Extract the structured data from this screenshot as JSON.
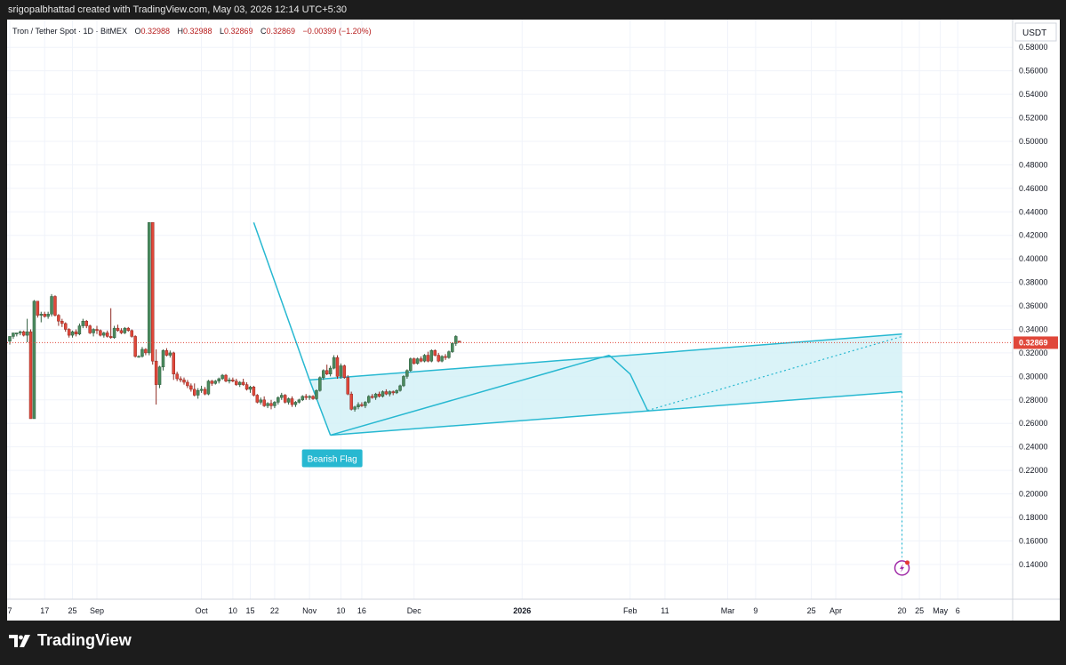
{
  "header": {
    "credit": "srigopalbhattad created with TradingView.com, May 03, 2026 12:14 UTC+5:30"
  },
  "legend": {
    "symbol": "Tron / Tether Spot · 1D · BitMEX",
    "open_label": "O",
    "open": "0.32988",
    "high_label": "H",
    "high": "0.32988",
    "low_label": "L",
    "low": "0.32869",
    "close_label": "C",
    "close": "0.32869",
    "change": "−0.00399 (−1.20%)"
  },
  "currency_label": "USDT",
  "last_price_label": "0.32869",
  "pattern_label": "Bearish Flag",
  "footer": {
    "brand": "TradingView",
    "logo_icon": "tradingview-logo-icon"
  },
  "colors": {
    "up": "#4a8a5e",
    "down": "#e0473a",
    "pattern": "#27b8d1",
    "pattern_fill": "#d4f1f7",
    "last_price": "#e0473a"
  },
  "chart_data": {
    "type": "candlestick",
    "symbol": "TRXUSDT",
    "interval": "1D",
    "ylim": [
      0.13,
      0.6
    ],
    "y_ticks": [
      "0.58000",
      "0.56000",
      "0.54000",
      "0.52000",
      "0.50000",
      "0.48000",
      "0.46000",
      "0.44000",
      "0.42000",
      "0.40000",
      "0.38000",
      "0.36000",
      "0.34000",
      "0.32000",
      "0.30000",
      "0.28000",
      "0.26000",
      "0.24000",
      "0.22000",
      "0.20000",
      "0.18000",
      "0.16000",
      "0.14000"
    ],
    "x_ticks": [
      {
        "label": "7",
        "day": 0
      },
      {
        "label": "17",
        "day": 10
      },
      {
        "label": "25",
        "day": 18
      },
      {
        "label": "Sep",
        "day": 25
      },
      {
        "label": "Oct",
        "day": 55
      },
      {
        "label": "10",
        "day": 64
      },
      {
        "label": "15",
        "day": 69
      },
      {
        "label": "22",
        "day": 76
      },
      {
        "label": "Nov",
        "day": 86
      },
      {
        "label": "10",
        "day": 95
      },
      {
        "label": "16",
        "day": 101
      },
      {
        "label": "Dec",
        "day": 116
      },
      {
        "label": "2026",
        "day": 147
      },
      {
        "label": "Feb",
        "day": 178
      },
      {
        "label": "11",
        "day": 188
      },
      {
        "label": "Mar",
        "day": 206
      },
      {
        "label": "9",
        "day": 214
      },
      {
        "label": "25",
        "day": 230
      },
      {
        "label": "Apr",
        "day": 237
      },
      {
        "label": "20",
        "day": 256
      },
      {
        "label": "25",
        "day": 261
      },
      {
        "label": "May",
        "day": 267
      },
      {
        "label": "6",
        "day": 272
      }
    ],
    "candles": [
      [
        0.33,
        0.334,
        0.327,
        0.334
      ],
      [
        0.334,
        0.336,
        0.332,
        0.337
      ],
      [
        0.336,
        0.337,
        0.334,
        0.337
      ],
      [
        0.337,
        0.339,
        0.335,
        0.338
      ],
      [
        0.338,
        0.339,
        0.334,
        0.335
      ],
      [
        0.335,
        0.349,
        0.329,
        0.338
      ],
      [
        0.338,
        0.34,
        0.264,
        0.264
      ],
      [
        0.264,
        0.365,
        0.264,
        0.364
      ],
      [
        0.364,
        0.364,
        0.35,
        0.352
      ],
      [
        0.352,
        0.355,
        0.346,
        0.353
      ],
      [
        0.353,
        0.355,
        0.35,
        0.351
      ],
      [
        0.351,
        0.355,
        0.349,
        0.353
      ],
      [
        0.353,
        0.37,
        0.351,
        0.368
      ],
      [
        0.368,
        0.369,
        0.351,
        0.352
      ],
      [
        0.352,
        0.353,
        0.343,
        0.347
      ],
      [
        0.347,
        0.349,
        0.342,
        0.345
      ],
      [
        0.345,
        0.346,
        0.338,
        0.34
      ],
      [
        0.34,
        0.341,
        0.333,
        0.335
      ],
      [
        0.335,
        0.339,
        0.333,
        0.338
      ],
      [
        0.338,
        0.34,
        0.334,
        0.336
      ],
      [
        0.336,
        0.345,
        0.335,
        0.343
      ],
      [
        0.343,
        0.349,
        0.341,
        0.347
      ],
      [
        0.347,
        0.348,
        0.341,
        0.343
      ],
      [
        0.343,
        0.344,
        0.336,
        0.337
      ],
      [
        0.337,
        0.341,
        0.334,
        0.34
      ],
      [
        0.34,
        0.343,
        0.336,
        0.339
      ],
      [
        0.339,
        0.34,
        0.334,
        0.335
      ],
      [
        0.335,
        0.338,
        0.333,
        0.337
      ],
      [
        0.337,
        0.339,
        0.333,
        0.334
      ],
      [
        0.334,
        0.358,
        0.332,
        0.333
      ],
      [
        0.333,
        0.343,
        0.332,
        0.341
      ],
      [
        0.341,
        0.344,
        0.338,
        0.339
      ],
      [
        0.339,
        0.341,
        0.336,
        0.337
      ],
      [
        0.337,
        0.342,
        0.336,
        0.341
      ],
      [
        0.341,
        0.342,
        0.338,
        0.339
      ],
      [
        0.339,
        0.34,
        0.333,
        0.334
      ],
      [
        0.334,
        0.335,
        0.316,
        0.317
      ],
      [
        0.317,
        0.318,
        0.316,
        0.317
      ],
      [
        0.317,
        0.325,
        0.316,
        0.323
      ],
      [
        0.323,
        0.324,
        0.318,
        0.32
      ],
      [
        0.32,
        0.431,
        0.318,
        0.431
      ],
      [
        0.431,
        0.431,
        0.31,
        0.313
      ],
      [
        0.313,
        0.323,
        0.276,
        0.293
      ],
      [
        0.293,
        0.309,
        0.29,
        0.308
      ],
      [
        0.308,
        0.323,
        0.305,
        0.322
      ],
      [
        0.322,
        0.324,
        0.317,
        0.318
      ],
      [
        0.318,
        0.322,
        0.316,
        0.32
      ],
      [
        0.32,
        0.321,
        0.297,
        0.302
      ],
      [
        0.302,
        0.304,
        0.296,
        0.298
      ],
      [
        0.298,
        0.3,
        0.295,
        0.297
      ],
      [
        0.297,
        0.299,
        0.293,
        0.295
      ],
      [
        0.295,
        0.297,
        0.29,
        0.292
      ],
      [
        0.292,
        0.294,
        0.287,
        0.289
      ],
      [
        0.289,
        0.294,
        0.283,
        0.284
      ],
      [
        0.284,
        0.29,
        0.281,
        0.288
      ],
      [
        0.288,
        0.292,
        0.286,
        0.289
      ],
      [
        0.289,
        0.291,
        0.284,
        0.285
      ],
      [
        0.285,
        0.297,
        0.284,
        0.296
      ],
      [
        0.296,
        0.297,
        0.292,
        0.294
      ],
      [
        0.294,
        0.297,
        0.293,
        0.296
      ],
      [
        0.296,
        0.299,
        0.294,
        0.298
      ],
      [
        0.298,
        0.302,
        0.297,
        0.301
      ],
      [
        0.301,
        0.302,
        0.295,
        0.296
      ],
      [
        0.296,
        0.299,
        0.294,
        0.297
      ],
      [
        0.297,
        0.299,
        0.295,
        0.296
      ],
      [
        0.296,
        0.298,
        0.292,
        0.293
      ],
      [
        0.293,
        0.296,
        0.291,
        0.295
      ],
      [
        0.295,
        0.298,
        0.292,
        0.293
      ],
      [
        0.293,
        0.295,
        0.288,
        0.289
      ],
      [
        0.289,
        0.292,
        0.286,
        0.291
      ],
      [
        0.291,
        0.292,
        0.283,
        0.284
      ],
      [
        0.284,
        0.285,
        0.277,
        0.278
      ],
      [
        0.278,
        0.282,
        0.276,
        0.28
      ],
      [
        0.28,
        0.283,
        0.274,
        0.275
      ],
      [
        0.275,
        0.278,
        0.273,
        0.277
      ],
      [
        0.277,
        0.28,
        0.272,
        0.275
      ],
      [
        0.275,
        0.279,
        0.273,
        0.278
      ],
      [
        0.278,
        0.283,
        0.276,
        0.282
      ],
      [
        0.282,
        0.286,
        0.28,
        0.284
      ],
      [
        0.284,
        0.285,
        0.277,
        0.278
      ],
      [
        0.278,
        0.282,
        0.276,
        0.281
      ],
      [
        0.281,
        0.283,
        0.274,
        0.276
      ],
      [
        0.276,
        0.279,
        0.274,
        0.278
      ],
      [
        0.278,
        0.281,
        0.277,
        0.28
      ],
      [
        0.28,
        0.284,
        0.279,
        0.283
      ],
      [
        0.283,
        0.285,
        0.28,
        0.282
      ],
      [
        0.282,
        0.284,
        0.28,
        0.283
      ],
      [
        0.283,
        0.284,
        0.28,
        0.281
      ],
      [
        0.281,
        0.289,
        0.28,
        0.288
      ],
      [
        0.288,
        0.3,
        0.287,
        0.299
      ],
      [
        0.299,
        0.306,
        0.297,
        0.305
      ],
      [
        0.305,
        0.31,
        0.301,
        0.302
      ],
      [
        0.302,
        0.309,
        0.3,
        0.307
      ],
      [
        0.307,
        0.318,
        0.306,
        0.316
      ],
      [
        0.316,
        0.318,
        0.298,
        0.3
      ],
      [
        0.3,
        0.311,
        0.298,
        0.309
      ],
      [
        0.309,
        0.31,
        0.298,
        0.299
      ],
      [
        0.299,
        0.301,
        0.284,
        0.285
      ],
      [
        0.285,
        0.287,
        0.271,
        0.272
      ],
      [
        0.272,
        0.275,
        0.27,
        0.274
      ],
      [
        0.274,
        0.278,
        0.272,
        0.276
      ],
      [
        0.276,
        0.278,
        0.274,
        0.275
      ],
      [
        0.275,
        0.279,
        0.273,
        0.278
      ],
      [
        0.278,
        0.284,
        0.277,
        0.283
      ],
      [
        0.283,
        0.285,
        0.281,
        0.282
      ],
      [
        0.282,
        0.286,
        0.28,
        0.285
      ],
      [
        0.285,
        0.287,
        0.282,
        0.283
      ],
      [
        0.283,
        0.288,
        0.282,
        0.287
      ],
      [
        0.287,
        0.289,
        0.284,
        0.285
      ],
      [
        0.285,
        0.288,
        0.283,
        0.287
      ],
      [
        0.287,
        0.288,
        0.284,
        0.286
      ],
      [
        0.286,
        0.289,
        0.285,
        0.288
      ],
      [
        0.288,
        0.293,
        0.287,
        0.292
      ],
      [
        0.292,
        0.301,
        0.291,
        0.3
      ],
      [
        0.3,
        0.306,
        0.298,
        0.305
      ],
      [
        0.305,
        0.316,
        0.304,
        0.315
      ],
      [
        0.315,
        0.316,
        0.31,
        0.311
      ],
      [
        0.311,
        0.316,
        0.31,
        0.315
      ],
      [
        0.315,
        0.317,
        0.312,
        0.313
      ],
      [
        0.313,
        0.319,
        0.312,
        0.318
      ],
      [
        0.318,
        0.321,
        0.312,
        0.313
      ],
      [
        0.313,
        0.323,
        0.312,
        0.322
      ],
      [
        0.322,
        0.323,
        0.317,
        0.318
      ],
      [
        0.318,
        0.32,
        0.312,
        0.313
      ],
      [
        0.313,
        0.318,
        0.312,
        0.317
      ],
      [
        0.317,
        0.319,
        0.314,
        0.316
      ],
      [
        0.316,
        0.322,
        0.315,
        0.321
      ],
      [
        0.321,
        0.329,
        0.32,
        0.328
      ],
      [
        0.328,
        0.335,
        0.326,
        0.334
      ],
      [
        0.33,
        0.33,
        0.329,
        0.329
      ]
    ],
    "pattern": {
      "name": "Bearish Flag",
      "pole": [
        {
          "day": 70,
          "price": 0.431
        },
        {
          "day": 86,
          "price": 0.297
        }
      ],
      "flag_low_point": {
        "day": 92,
        "price": 0.25
      },
      "channel_upper": [
        {
          "day": 86,
          "price": 0.297
        },
        {
          "day": 256,
          "price": 0.336
        }
      ],
      "channel_lower": [
        {
          "day": 92,
          "price": 0.25
        },
        {
          "day": 256,
          "price": 0.287
        }
      ],
      "swing_line": [
        {
          "day": 92,
          "price": 0.25
        },
        {
          "day": 172,
          "price": 0.318
        }
      ],
      "projection_target": {
        "day": 256,
        "price": 0.14
      }
    },
    "last_price": 0.32869
  }
}
